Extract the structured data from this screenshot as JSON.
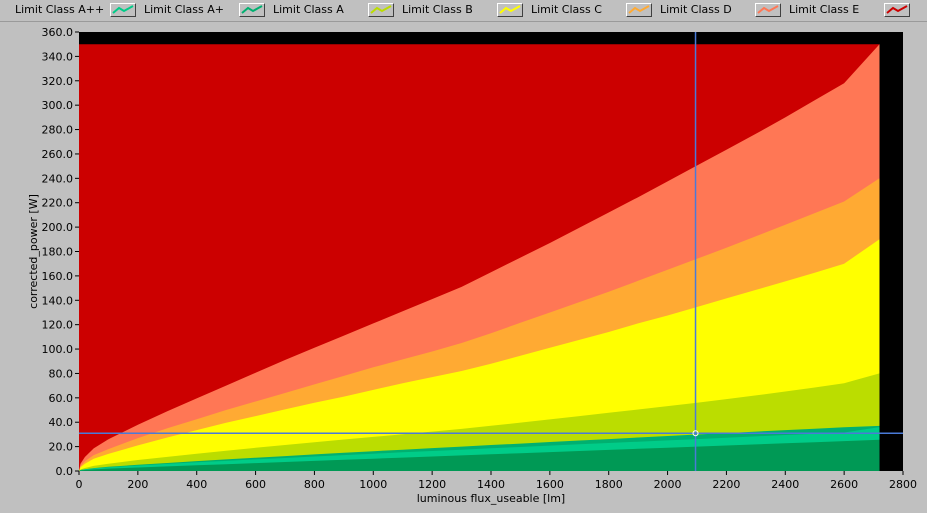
{
  "chart_data": {
    "type": "area",
    "xlabel": "luminous flux_useable [lm]",
    "ylabel": "corrected_power [W]",
    "xlim": [
      0,
      2800
    ],
    "ylim": [
      0,
      360
    ],
    "x_ticks": [
      "0",
      "200",
      "400",
      "600",
      "800",
      "1000",
      "1200",
      "1400",
      "1600",
      "1800",
      "2000",
      "2200",
      "2400",
      "2600",
      "2800"
    ],
    "y_ticks": [
      "0.0",
      "20.0",
      "40.0",
      "60.0",
      "80.0",
      "100.0",
      "120.0",
      "140.0",
      "160.0",
      "180.0",
      "200.0",
      "220.0",
      "240.0",
      "260.0",
      "280.0",
      "300.0",
      "320.0",
      "340.0",
      "360.0"
    ],
    "x": [
      0,
      5,
      20,
      50,
      100,
      200,
      300,
      400,
      500,
      600,
      700,
      800,
      900,
      1000,
      1100,
      1200,
      1300,
      1400,
      1500,
      1600,
      1700,
      1800,
      1900,
      2000,
      2100,
      2200,
      2300,
      2400,
      2500,
      2600,
      2720
    ],
    "series": [
      {
        "name": "Limit Class A++",
        "color": "#009955",
        "values": [
          0,
          0.5,
          0.8,
          1.3,
          2.0,
          2.9,
          3.8,
          4.7,
          5.6,
          6.5,
          7.4,
          8.3,
          9.2,
          10.1,
          11.0,
          11.9,
          12.8,
          13.7,
          14.6,
          15.5,
          16.4,
          17.3,
          18.2,
          19.1,
          20.0,
          20.9,
          21.8,
          22.7,
          23.6,
          24.5,
          25.7
        ]
      },
      {
        "name": "Limit Class A+",
        "color": "#00cc88",
        "values": [
          0,
          0.7,
          1.3,
          2.1,
          3.0,
          4.5,
          5.8,
          7.1,
          8.3,
          9.5,
          10.7,
          11.9,
          13.0,
          14.2,
          15.3,
          16.4,
          17.5,
          18.6,
          19.7,
          20.8,
          21.9,
          23.0,
          24.0,
          25.1,
          26.2,
          27.3,
          28.4,
          29.5,
          30.5,
          31.6,
          36.0
        ]
      },
      {
        "name": "Limit Class A",
        "color": "#00b070",
        "values": [
          0,
          0.8,
          1.5,
          2.4,
          3.5,
          5.1,
          6.6,
          8.1,
          9.5,
          10.9,
          12.2,
          13.6,
          14.9,
          16.2,
          17.5,
          18.8,
          20.0,
          21.3,
          22.5,
          23.8,
          25.0,
          26.2,
          27.5,
          28.7,
          29.9,
          31.1,
          32.3,
          33.5,
          34.7,
          35.9,
          37.0
        ]
      },
      {
        "name": "Limit Class B",
        "color": "#bbdd00",
        "values": [
          0,
          1.2,
          2.5,
          4.2,
          6.0,
          9.0,
          11.6,
          14.2,
          16.6,
          19.0,
          21.3,
          23.6,
          25.8,
          28.0,
          30.2,
          32.3,
          34.5,
          37.1,
          39.7,
          42.3,
          45.0,
          47.7,
          50.4,
          53.2,
          56.0,
          59.0,
          62.0,
          65.2,
          68.5,
          72.0,
          80.0
        ]
      },
      {
        "name": "Limit Class C",
        "color": "#ffff00",
        "values": [
          0,
          3,
          6,
          10,
          14,
          21,
          27.5,
          33.5,
          39.5,
          45,
          50.5,
          56,
          61,
          66.5,
          72,
          77,
          82,
          88,
          94.5,
          101,
          107.5,
          114,
          121,
          127.5,
          134.5,
          141.5,
          148.5,
          155.5,
          162.5,
          170,
          190
        ]
      },
      {
        "name": "Limit Class D",
        "color": "#ffaa33",
        "values": [
          0,
          4,
          8,
          13,
          18,
          27,
          35,
          42.5,
          50,
          57,
          64,
          71,
          78,
          85,
          91.5,
          98,
          105,
          113,
          121.5,
          130,
          138.5,
          147,
          156,
          165,
          174,
          183,
          192.5,
          202,
          211.5,
          221,
          240
        ]
      },
      {
        "name": "Limit Class E",
        "color": "#ff7755",
        "values": [
          0,
          6,
          11.5,
          18.5,
          26,
          38,
          49,
          59.5,
          70,
          80.5,
          91,
          101,
          111,
          121,
          131,
          141,
          151,
          163,
          175,
          187,
          199.5,
          212,
          224.5,
          237.5,
          250.5,
          263.5,
          276.5,
          290,
          304,
          318,
          350
        ]
      },
      {
        "name": "",
        "color": "#cc0000",
        "values": [
          350,
          350,
          350,
          350,
          350,
          350,
          350,
          350,
          350,
          350,
          350,
          350,
          350,
          350,
          350,
          350,
          350,
          350,
          350,
          350,
          350,
          350,
          350,
          350,
          350,
          350,
          350,
          350,
          350,
          350,
          350
        ]
      }
    ],
    "legend_position": "top",
    "grid": false,
    "cursor": {
      "x": 2095,
      "y": 31
    }
  },
  "colors": {
    "background": "#000000",
    "frame": "#c0c0c0",
    "cursor": "#4a7ad8"
  }
}
